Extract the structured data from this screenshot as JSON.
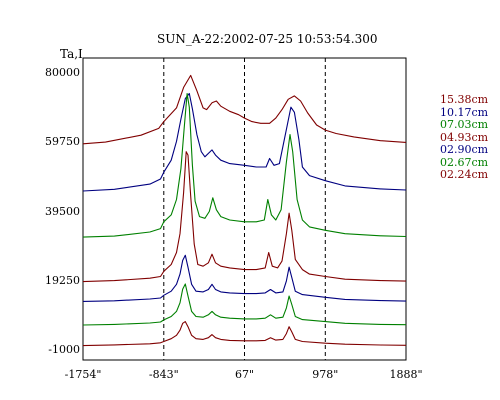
{
  "chart_data": {
    "type": "line",
    "title": "SUN_A-22:2002-07-25 10:53:54.300",
    "ylabel": "Ta,I",
    "yticks": [
      "80000",
      "59750",
      "39500",
      "19250",
      "-1000"
    ],
    "xticks": [
      "-1754\"",
      "-843\"",
      "67\"",
      "978\"",
      "1888\""
    ],
    "xlim": [
      -1754,
      1888
    ],
    "ylim": [
      -1000,
      80000
    ],
    "reference_lines_x": [
      -843,
      67,
      978
    ],
    "series": [
      {
        "name": "15.38cm",
        "color": "#800000",
        "offset": 59300,
        "points": [
          [
            -1754,
            0
          ],
          [
            -1500,
            500
          ],
          [
            -1100,
            2500
          ],
          [
            -900,
            4500
          ],
          [
            -843,
            6500
          ],
          [
            -700,
            10500
          ],
          [
            -620,
            16500
          ],
          [
            -540,
            20000
          ],
          [
            -470,
            15500
          ],
          [
            -400,
            10500
          ],
          [
            -360,
            10000
          ],
          [
            -300,
            12000
          ],
          [
            -250,
            12500
          ],
          [
            -200,
            11000
          ],
          [
            -100,
            9500
          ],
          [
            0,
            8500
          ],
          [
            67,
            7500
          ],
          [
            150,
            6500
          ],
          [
            250,
            6000
          ],
          [
            350,
            6000
          ],
          [
            420,
            7500
          ],
          [
            490,
            10000
          ],
          [
            560,
            13000
          ],
          [
            630,
            14000
          ],
          [
            700,
            12500
          ],
          [
            780,
            9000
          ],
          [
            880,
            5500
          ],
          [
            978,
            4000
          ],
          [
            1100,
            3000
          ],
          [
            1300,
            2000
          ],
          [
            1600,
            900
          ],
          [
            1888,
            400
          ]
        ]
      },
      {
        "name": "10.17cm",
        "color": "#000080",
        "offset": 45500,
        "points": [
          [
            -1754,
            0
          ],
          [
            -1400,
            500
          ],
          [
            -1000,
            2000
          ],
          [
            -880,
            3500
          ],
          [
            -843,
            5500
          ],
          [
            -760,
            9000
          ],
          [
            -700,
            14500
          ],
          [
            -650,
            21000
          ],
          [
            -600,
            27000
          ],
          [
            -555,
            28500
          ],
          [
            -520,
            24000
          ],
          [
            -470,
            16500
          ],
          [
            -420,
            11500
          ],
          [
            -380,
            10000
          ],
          [
            -340,
            11000
          ],
          [
            -300,
            12000
          ],
          [
            -260,
            10500
          ],
          [
            -200,
            9000
          ],
          [
            -100,
            8000
          ],
          [
            67,
            7500
          ],
          [
            200,
            7000
          ],
          [
            310,
            7000
          ],
          [
            350,
            9500
          ],
          [
            400,
            7500
          ],
          [
            460,
            8000
          ],
          [
            540,
            18000
          ],
          [
            590,
            24500
          ],
          [
            630,
            23000
          ],
          [
            680,
            15000
          ],
          [
            720,
            7000
          ],
          [
            800,
            4500
          ],
          [
            978,
            3000
          ],
          [
            1200,
            1500
          ],
          [
            1600,
            600
          ],
          [
            1888,
            300
          ]
        ]
      },
      {
        "name": "07.03cm",
        "color": "#008000",
        "offset": 32000,
        "points": [
          [
            -1754,
            0
          ],
          [
            -1400,
            300
          ],
          [
            -1000,
            1500
          ],
          [
            -880,
            2500
          ],
          [
            -843,
            4500
          ],
          [
            -760,
            6500
          ],
          [
            -700,
            11000
          ],
          [
            -650,
            20000
          ],
          [
            -610,
            33000
          ],
          [
            -580,
            42000
          ],
          [
            -555,
            38000
          ],
          [
            -520,
            21000
          ],
          [
            -490,
            10500
          ],
          [
            -440,
            6000
          ],
          [
            -380,
            5500
          ],
          [
            -330,
            7500
          ],
          [
            -290,
            11500
          ],
          [
            -250,
            8000
          ],
          [
            -200,
            6000
          ],
          [
            -100,
            5000
          ],
          [
            67,
            4500
          ],
          [
            200,
            4500
          ],
          [
            290,
            5000
          ],
          [
            330,
            11000
          ],
          [
            370,
            6500
          ],
          [
            420,
            5000
          ],
          [
            480,
            8000
          ],
          [
            540,
            22000
          ],
          [
            580,
            30000
          ],
          [
            610,
            25000
          ],
          [
            660,
            11000
          ],
          [
            720,
            5000
          ],
          [
            800,
            3000
          ],
          [
            978,
            2000
          ],
          [
            1200,
            1000
          ],
          [
            1600,
            400
          ],
          [
            1888,
            200
          ]
        ]
      },
      {
        "name": "04.93cm",
        "color": "#800000",
        "offset": 19000,
        "points": [
          [
            -1754,
            0
          ],
          [
            -1400,
            300
          ],
          [
            -1000,
            1000
          ],
          [
            -880,
            1500
          ],
          [
            -843,
            3000
          ],
          [
            -760,
            5000
          ],
          [
            -700,
            8500
          ],
          [
            -660,
            14000
          ],
          [
            -620,
            26000
          ],
          [
            -590,
            38000
          ],
          [
            -570,
            37000
          ],
          [
            -540,
            25000
          ],
          [
            -500,
            11000
          ],
          [
            -460,
            5000
          ],
          [
            -400,
            4500
          ],
          [
            -340,
            5500
          ],
          [
            -300,
            8000
          ],
          [
            -260,
            5500
          ],
          [
            -200,
            4500
          ],
          [
            -100,
            4000
          ],
          [
            67,
            3500
          ],
          [
            200,
            3500
          ],
          [
            300,
            4000
          ],
          [
            340,
            8500
          ],
          [
            380,
            4500
          ],
          [
            440,
            4000
          ],
          [
            490,
            6000
          ],
          [
            540,
            14000
          ],
          [
            570,
            20000
          ],
          [
            600,
            15000
          ],
          [
            640,
            6500
          ],
          [
            720,
            3500
          ],
          [
            800,
            2200
          ],
          [
            978,
            1500
          ],
          [
            1200,
            700
          ],
          [
            1600,
            300
          ],
          [
            1888,
            150
          ]
        ]
      },
      {
        "name": "02.90cm",
        "color": "#000080",
        "offset": 13200,
        "points": [
          [
            -1754,
            0
          ],
          [
            -1400,
            200
          ],
          [
            -1000,
            700
          ],
          [
            -880,
            1000
          ],
          [
            -843,
            1800
          ],
          [
            -760,
            3000
          ],
          [
            -700,
            5000
          ],
          [
            -660,
            8000
          ],
          [
            -630,
            12000
          ],
          [
            -600,
            13500
          ],
          [
            -570,
            10000
          ],
          [
            -530,
            5000
          ],
          [
            -480,
            3000
          ],
          [
            -400,
            2800
          ],
          [
            -340,
            3500
          ],
          [
            -300,
            5000
          ],
          [
            -260,
            3500
          ],
          [
            -200,
            2800
          ],
          [
            -100,
            2500
          ],
          [
            67,
            2300
          ],
          [
            200,
            2300
          ],
          [
            300,
            2500
          ],
          [
            360,
            3500
          ],
          [
            420,
            2500
          ],
          [
            500,
            2800
          ],
          [
            540,
            6000
          ],
          [
            570,
            10000
          ],
          [
            600,
            7000
          ],
          [
            640,
            3000
          ],
          [
            720,
            2000
          ],
          [
            978,
            1200
          ],
          [
            1200,
            600
          ],
          [
            1600,
            250
          ],
          [
            1888,
            100
          ]
        ]
      },
      {
        "name": "02.67cm",
        "color": "#008000",
        "offset": 6300,
        "points": [
          [
            -1754,
            0
          ],
          [
            -1400,
            200
          ],
          [
            -1000,
            600
          ],
          [
            -880,
            900
          ],
          [
            -843,
            1500
          ],
          [
            -760,
            2500
          ],
          [
            -700,
            4000
          ],
          [
            -660,
            6500
          ],
          [
            -630,
            10500
          ],
          [
            -600,
            12000
          ],
          [
            -570,
            8500
          ],
          [
            -530,
            4000
          ],
          [
            -480,
            2500
          ],
          [
            -400,
            2300
          ],
          [
            -340,
            3000
          ],
          [
            -300,
            4000
          ],
          [
            -260,
            3000
          ],
          [
            -200,
            2300
          ],
          [
            -100,
            2000
          ],
          [
            67,
            1800
          ],
          [
            200,
            1800
          ],
          [
            300,
            2000
          ],
          [
            360,
            3000
          ],
          [
            420,
            2000
          ],
          [
            500,
            2300
          ],
          [
            540,
            5000
          ],
          [
            570,
            8500
          ],
          [
            600,
            6000
          ],
          [
            640,
            2500
          ],
          [
            720,
            1600
          ],
          [
            978,
            1000
          ],
          [
            1200,
            500
          ],
          [
            1600,
            200
          ],
          [
            1888,
            100
          ]
        ]
      },
      {
        "name": "02.24cm",
        "color": "#800000",
        "offset": 300,
        "points": [
          [
            -1754,
            0
          ],
          [
            -1400,
            200
          ],
          [
            -1000,
            500
          ],
          [
            -880,
            800
          ],
          [
            -843,
            1200
          ],
          [
            -760,
            2000
          ],
          [
            -700,
            3000
          ],
          [
            -660,
            4500
          ],
          [
            -630,
            6500
          ],
          [
            -600,
            7000
          ],
          [
            -570,
            5500
          ],
          [
            -530,
            3000
          ],
          [
            -480,
            2000
          ],
          [
            -400,
            1800
          ],
          [
            -340,
            2300
          ],
          [
            -300,
            3200
          ],
          [
            -260,
            2300
          ],
          [
            -200,
            1800
          ],
          [
            -100,
            1500
          ],
          [
            67,
            1400
          ],
          [
            200,
            1400
          ],
          [
            300,
            1500
          ],
          [
            360,
            2300
          ],
          [
            420,
            1600
          ],
          [
            500,
            1800
          ],
          [
            540,
            3500
          ],
          [
            570,
            5500
          ],
          [
            600,
            4000
          ],
          [
            640,
            1800
          ],
          [
            720,
            1200
          ],
          [
            978,
            700
          ],
          [
            1200,
            400
          ],
          [
            1600,
            150
          ],
          [
            1888,
            80
          ]
        ]
      }
    ]
  }
}
